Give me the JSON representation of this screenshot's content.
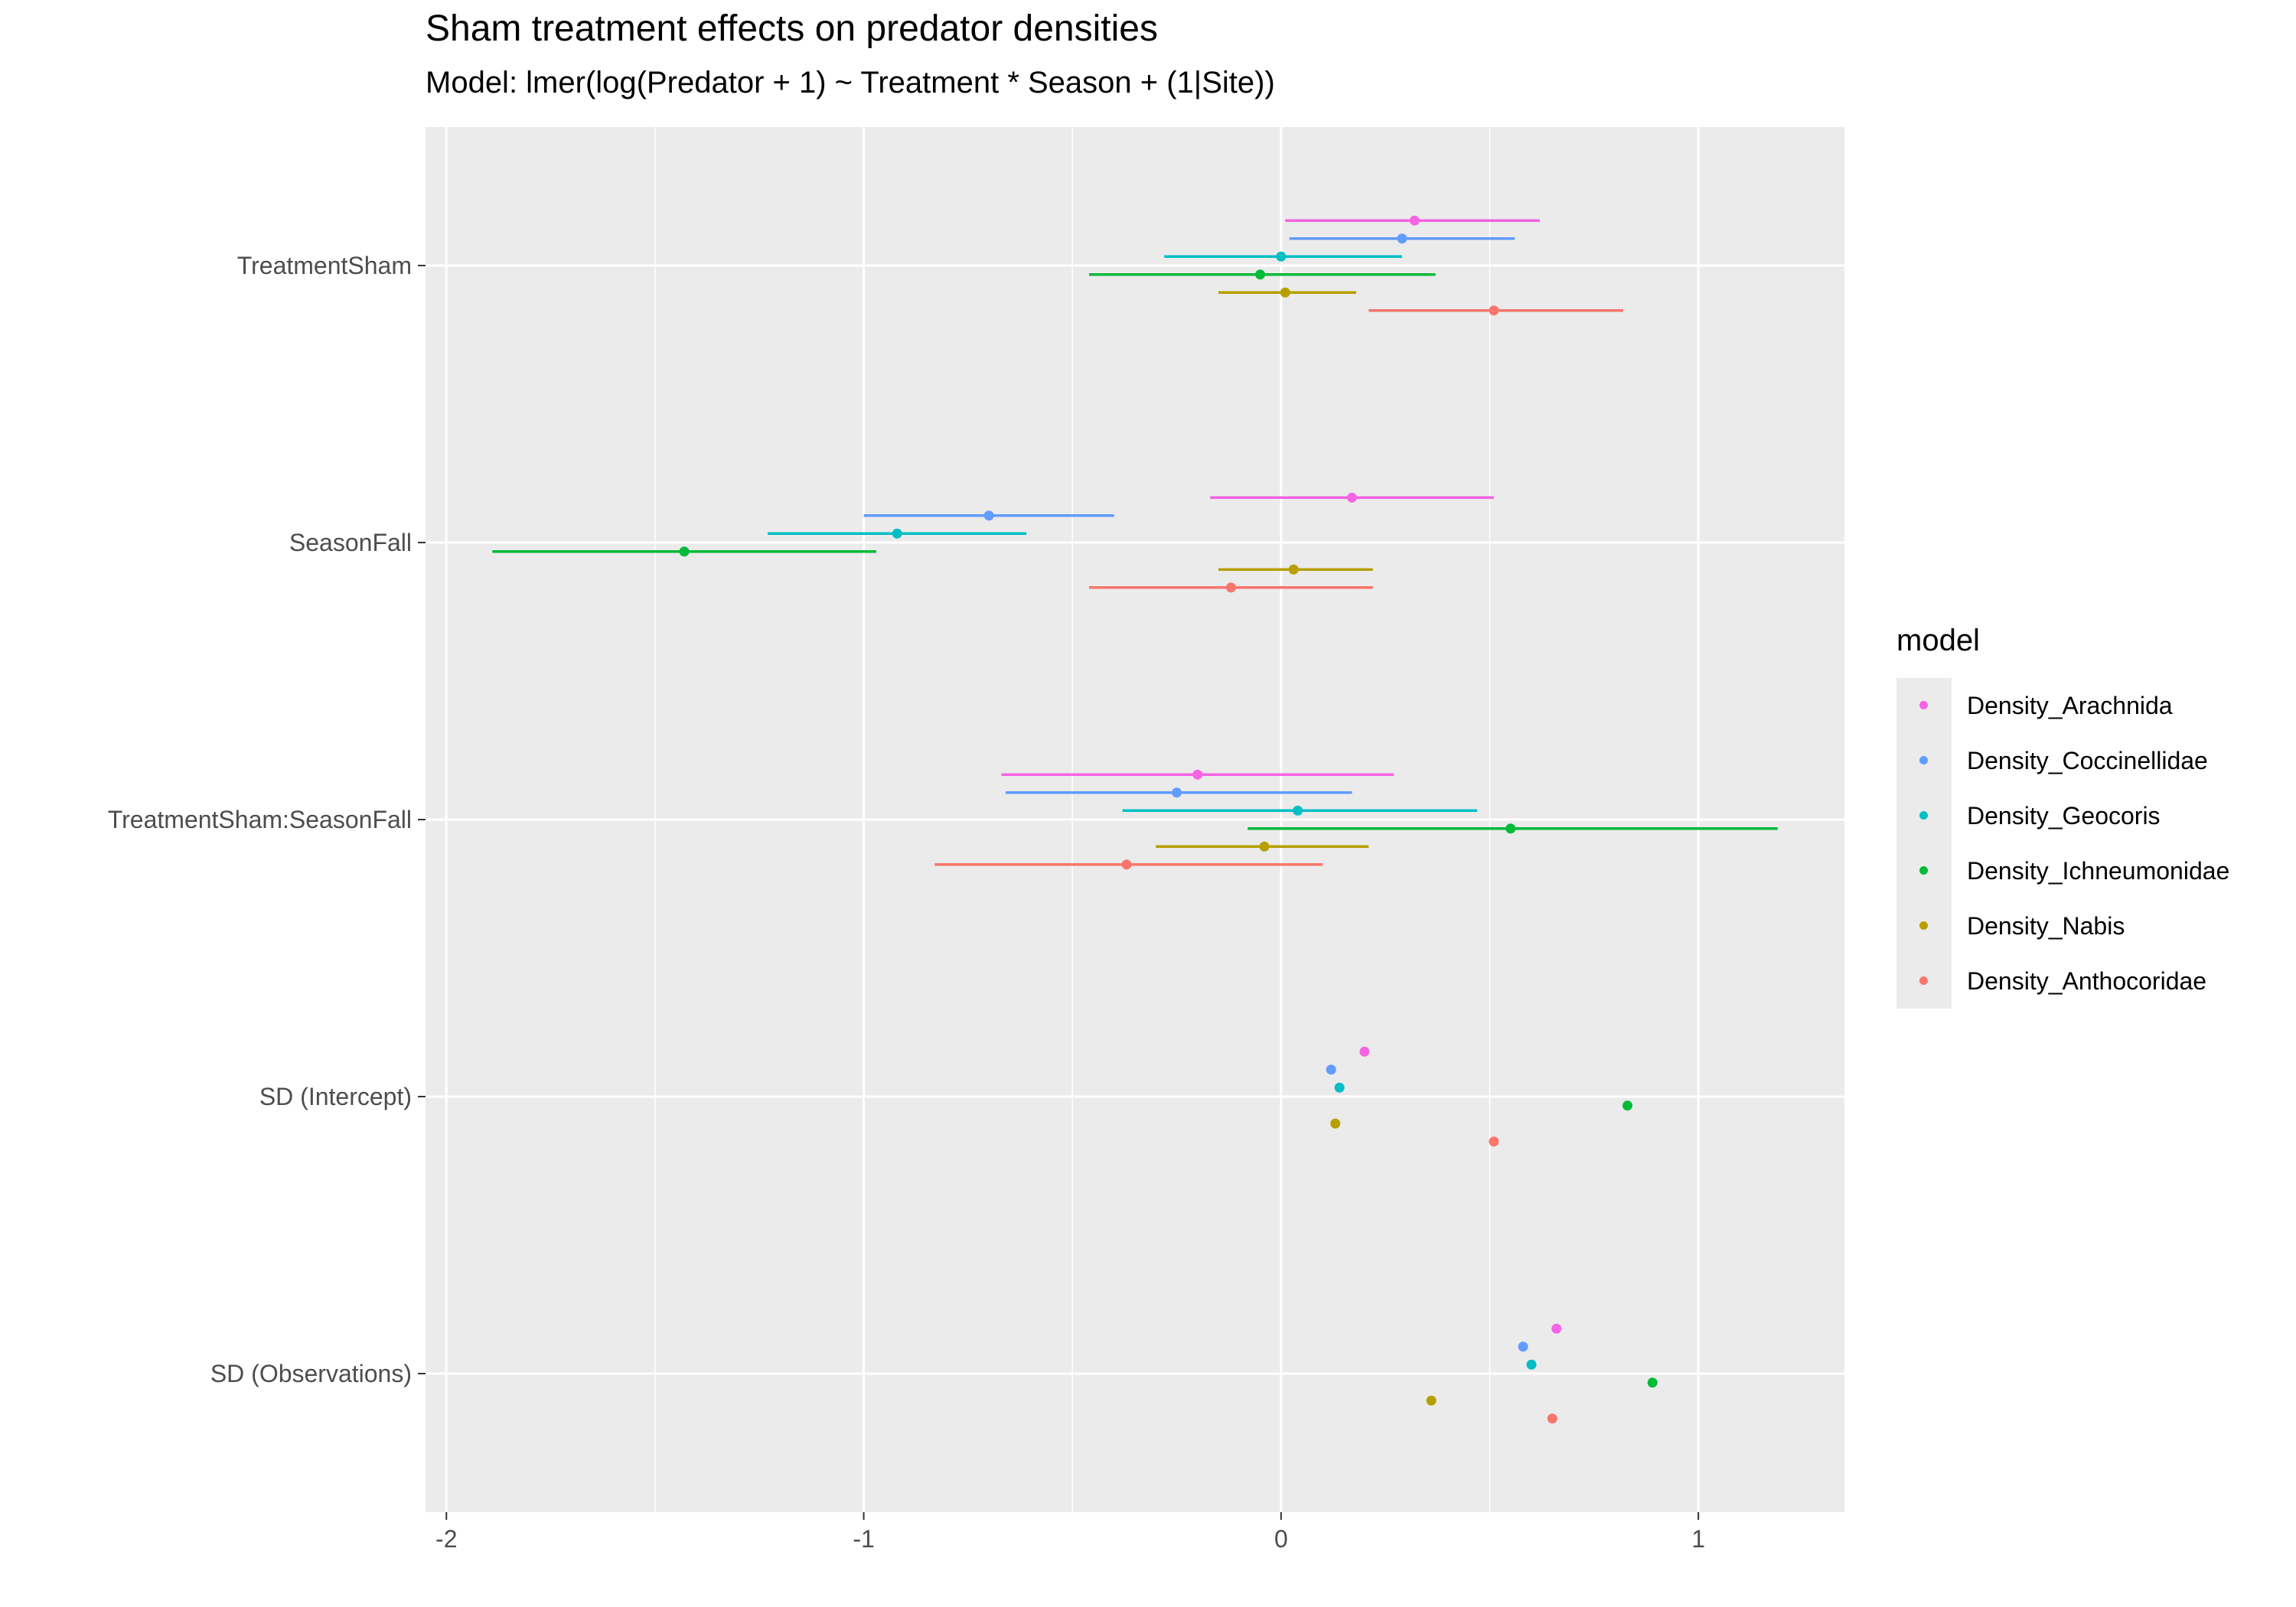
{
  "title": "Sham treatment effects on predator densities",
  "subtitle": "Model: lmer(log(Predator + 1) ~ Treatment * Season + (1|Site))",
  "legend_title": "model",
  "chart_data": {
    "type": "forest",
    "title": "Sham treatment effects on predator densities",
    "subtitle": "Model: lmer(log(Predator + 1) ~ Treatment * Season + (1|Site))",
    "xlabel": "",
    "ylabel": "",
    "xlim": [
      -2.05,
      1.35
    ],
    "x_ticks": [
      -2,
      -1,
      0,
      1
    ],
    "x_tick_labels": [
      "-2",
      "-1",
      "0",
      "1"
    ],
    "categories": [
      "TreatmentSham",
      "SeasonFall",
      "TreatmentSham:SeasonFall",
      "SD (Intercept)",
      "SD (Observations)"
    ],
    "grid": true,
    "legend_position": "right",
    "series": [
      {
        "name": "Density_Arachnida",
        "color": "#f564e3",
        "points": [
          {
            "estimate": 0.32,
            "low": 0.01,
            "high": 0.62
          },
          {
            "estimate": 0.17,
            "low": -0.17,
            "high": 0.51
          },
          {
            "estimate": -0.2,
            "low": -0.67,
            "high": 0.27
          },
          {
            "estimate": 0.2,
            "low": null,
            "high": null
          },
          {
            "estimate": 0.66,
            "low": null,
            "high": null
          }
        ]
      },
      {
        "name": "Density_Coccinellidae",
        "color": "#619cff",
        "points": [
          {
            "estimate": 0.29,
            "low": 0.02,
            "high": 0.56
          },
          {
            "estimate": -0.7,
            "low": -1.0,
            "high": -0.4
          },
          {
            "estimate": -0.25,
            "low": -0.66,
            "high": 0.17
          },
          {
            "estimate": 0.12,
            "low": null,
            "high": null
          },
          {
            "estimate": 0.58,
            "low": null,
            "high": null
          }
        ]
      },
      {
        "name": "Density_Geocoris",
        "color": "#00bfc4",
        "points": [
          {
            "estimate": 0.0,
            "low": -0.28,
            "high": 0.29
          },
          {
            "estimate": -0.92,
            "low": -1.23,
            "high": -0.61
          },
          {
            "estimate": 0.04,
            "low": -0.38,
            "high": 0.47
          },
          {
            "estimate": 0.14,
            "low": null,
            "high": null
          },
          {
            "estimate": 0.6,
            "low": null,
            "high": null
          }
        ]
      },
      {
        "name": "Density_Ichneumonidae",
        "color": "#00ba38",
        "points": [
          {
            "estimate": -0.05,
            "low": -0.46,
            "high": 0.37
          },
          {
            "estimate": -1.43,
            "low": -1.89,
            "high": -0.97
          },
          {
            "estimate": 0.55,
            "low": -0.08,
            "high": 1.19
          },
          {
            "estimate": 0.83,
            "low": null,
            "high": null
          },
          {
            "estimate": 0.89,
            "low": null,
            "high": null
          }
        ]
      },
      {
        "name": "Density_Nabis",
        "color": "#b79f00",
        "points": [
          {
            "estimate": 0.01,
            "low": -0.15,
            "high": 0.18
          },
          {
            "estimate": 0.03,
            "low": -0.15,
            "high": 0.22
          },
          {
            "estimate": -0.04,
            "low": -0.3,
            "high": 0.21
          },
          {
            "estimate": 0.13,
            "low": null,
            "high": null
          },
          {
            "estimate": 0.36,
            "low": null,
            "high": null
          }
        ]
      },
      {
        "name": "Density_Anthocoridae",
        "color": "#f8766d",
        "points": [
          {
            "estimate": 0.51,
            "low": 0.21,
            "high": 0.82
          },
          {
            "estimate": -0.12,
            "low": -0.46,
            "high": 0.22
          },
          {
            "estimate": -0.37,
            "low": -0.83,
            "high": 0.1
          },
          {
            "estimate": 0.51,
            "low": null,
            "high": null
          },
          {
            "estimate": 0.65,
            "low": null,
            "high": null
          }
        ]
      }
    ]
  }
}
